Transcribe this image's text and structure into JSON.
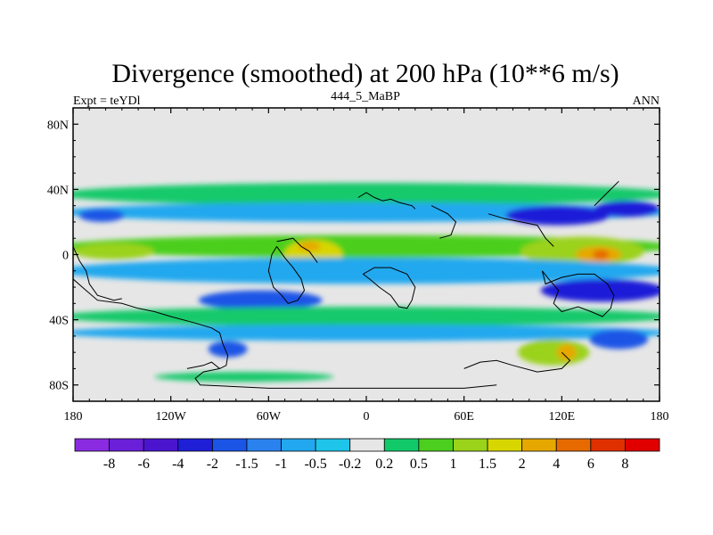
{
  "chart_data": {
    "type": "heatmap",
    "title": "Divergence (smoothed) at 200 hPa (10**6 m/s)",
    "left_label": "Expt = teYDl",
    "center_label": "444_5_MaBP",
    "right_label": "ANN",
    "x_range": [
      -180,
      180
    ],
    "y_range": [
      -90,
      90
    ],
    "x_ticks": [
      {
        "value": -180,
        "label": "180"
      },
      {
        "value": -120,
        "label": "120W"
      },
      {
        "value": -60,
        "label": "60W"
      },
      {
        "value": 0,
        "label": "0"
      },
      {
        "value": 60,
        "label": "60E"
      },
      {
        "value": 120,
        "label": "120E"
      },
      {
        "value": 180,
        "label": "180"
      }
    ],
    "y_ticks": [
      {
        "value": 80,
        "label": "80N"
      },
      {
        "value": 40,
        "label": "40N"
      },
      {
        "value": 0,
        "label": "0"
      },
      {
        "value": -40,
        "label": "40S"
      },
      {
        "value": -80,
        "label": "80S"
      }
    ],
    "colorbar": {
      "colors": [
        "#8a2be2",
        "#6a1fd8",
        "#4b15d0",
        "#1f1fd8",
        "#1a55e6",
        "#2a82ee",
        "#22a8ee",
        "#1ec4ea",
        "#e6e6e6",
        "#12c96a",
        "#4ccf1e",
        "#9bd21a",
        "#d8d600",
        "#e6a800",
        "#e66a00",
        "#e03000",
        "#e00000"
      ],
      "labels": [
        "-8",
        "-6",
        "-4",
        "-2",
        "-1.5",
        "-1",
        "-0.5",
        "-0.2",
        "0.2",
        "0.5",
        "1",
        "1.5",
        "2",
        "4",
        "6",
        "8"
      ]
    },
    "bands": [
      {
        "lat": 37,
        "lon0": -180,
        "lon1": 180,
        "rx": 190,
        "ry": 7,
        "level": 0.4
      },
      {
        "lat": 26,
        "lon0": -180,
        "lon1": 180,
        "rx": 190,
        "ry": 6,
        "level": -0.7
      },
      {
        "lat": 24,
        "lon0": -175,
        "lon1": -150,
        "rx": 14,
        "ry": 4,
        "level": -1.5
      },
      {
        "lat": 24,
        "lon0": 90,
        "lon1": 145,
        "rx": 32,
        "ry": 6,
        "level": -2
      },
      {
        "lat": 28,
        "lon0": 140,
        "lon1": 180,
        "rx": 20,
        "ry": 5,
        "level": -2
      },
      {
        "lat": 5,
        "lon0": -180,
        "lon1": 180,
        "rx": 190,
        "ry": 7,
        "level": 0.7
      },
      {
        "lat": 2,
        "lon0": -175,
        "lon1": -135,
        "rx": 25,
        "ry": 5,
        "level": 1.5
      },
      {
        "lat": 0,
        "lon0": -45,
        "lon1": -20,
        "rx": 18,
        "ry": 9,
        "level": 2
      },
      {
        "lat": 5,
        "lon0": -42,
        "lon1": -28,
        "rx": 7,
        "ry": 3,
        "level": 4
      },
      {
        "lat": 2,
        "lon0": 100,
        "lon1": 165,
        "rx": 38,
        "ry": 9,
        "level": 1.5
      },
      {
        "lat": 0,
        "lon0": 130,
        "lon1": 155,
        "rx": 14,
        "ry": 5,
        "level": 4
      },
      {
        "lat": 0,
        "lon0": 140,
        "lon1": 148,
        "rx": 5,
        "ry": 3,
        "level": 6
      },
      {
        "lat": -10,
        "lon0": -180,
        "lon1": 180,
        "rx": 190,
        "ry": 8,
        "level": -0.7
      },
      {
        "lat": -22,
        "lon0": 110,
        "lon1": 180,
        "rx": 38,
        "ry": 7,
        "level": -2
      },
      {
        "lat": -28,
        "lon0": -100,
        "lon1": -30,
        "rx": 38,
        "ry": 6,
        "level": -1.5
      },
      {
        "lat": -38,
        "lon0": -180,
        "lon1": 180,
        "rx": 190,
        "ry": 6,
        "level": 0.5
      },
      {
        "lat": -48,
        "lon0": -180,
        "lon1": 180,
        "rx": 190,
        "ry": 5,
        "level": -0.5
      },
      {
        "lat": -60,
        "lon0": 95,
        "lon1": 135,
        "rx": 22,
        "ry": 8,
        "level": 1.5
      },
      {
        "lat": -60,
        "lon0": 118,
        "lon1": 128,
        "rx": 6,
        "ry": 5,
        "level": 4
      },
      {
        "lat": -52,
        "lon0": 140,
        "lon1": 170,
        "rx": 18,
        "ry": 6,
        "level": -1.5
      },
      {
        "lat": -58,
        "lon0": -95,
        "lon1": -75,
        "rx": 12,
        "ry": 5,
        "level": -1.5
      },
      {
        "lat": -75,
        "lon0": -130,
        "lon1": -20,
        "rx": 55,
        "ry": 3,
        "level": 0.3
      }
    ]
  }
}
